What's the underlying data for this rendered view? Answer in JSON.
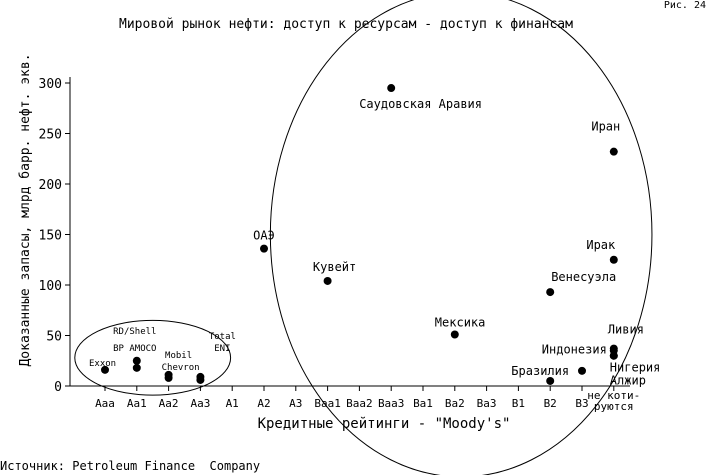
{
  "figure_label": "Рис. 24",
  "source": "Источник: Petroleum Finance  Company",
  "chart_data": {
    "type": "scatter",
    "title": "Мировой рынок нефти: доступ к ресурсам - доступ к финансам",
    "xlabel": "Кредитные рейтинги - \"Moody's\"",
    "ylabel": "Доказанные запасы, млрд барр. нефт. экв.",
    "categories": [
      "Aaa",
      "Aa1",
      "Aa2",
      "Aa3",
      "A1",
      "A2",
      "A3",
      "Baa1",
      "Baa2",
      "Baa3",
      "Ba1",
      "Ba2",
      "Ba3",
      "B1",
      "B2",
      "B3",
      "не коти-\nруются"
    ],
    "ylim": [
      0,
      300
    ],
    "yticks": [
      0,
      50,
      100,
      150,
      200,
      250,
      300
    ],
    "points": [
      {
        "label": "Exxon",
        "x": 0,
        "y": 16,
        "label_pos": "left"
      },
      {
        "label": "RD/Shell",
        "x": 1,
        "y": 25,
        "label_pos": "above2"
      },
      {
        "label": "BP AMOCO",
        "x": 1,
        "y": 18,
        "label_pos": "above1"
      },
      {
        "label": "Mobil",
        "x": 2,
        "y": 11,
        "label_pos": "above2"
      },
      {
        "label": "Chevron",
        "x": 2,
        "y": 8,
        "label_pos": "above1"
      },
      {
        "label": "Total",
        "x": 3,
        "y": 9,
        "label_pos": "right2"
      },
      {
        "label": "ENI",
        "x": 3,
        "y": 6,
        "label_pos": "right1"
      },
      {
        "label": "Саудовская Аравия",
        "x": 9,
        "y": 295,
        "label_pos": "below"
      },
      {
        "label": "Иран",
        "x": 16,
        "y": 232,
        "label_pos": "above"
      },
      {
        "label": "ОАЭ",
        "x": 5,
        "y": 136,
        "label_pos": "above"
      },
      {
        "label": "Ирак",
        "x": 16,
        "y": 125,
        "label_pos": "above"
      },
      {
        "label": "Кувейт",
        "x": 7,
        "y": 104,
        "label_pos": "above"
      },
      {
        "label": "Венесуэла",
        "x": 14,
        "y": 93,
        "label_pos": "above-right"
      },
      {
        "label": "Мексика",
        "x": 11,
        "y": 51,
        "label_pos": "above"
      },
      {
        "label": "Ливия",
        "x": 16,
        "y": 37,
        "label_pos": "above"
      },
      {
        "label": "Индонезия",
        "x": 16,
        "y": 35,
        "label_pos": "left"
      },
      {
        "label": "Нигерия",
        "x": 16,
        "y": 30,
        "label_pos": "below-right"
      },
      {
        "label": "Алжир",
        "x": 16,
        "y": 30,
        "label_pos": "below-right2"
      },
      {
        "label": "Бразилия",
        "x": 14,
        "y": 5,
        "label_pos": "above-left"
      },
      {
        "label": "",
        "x": 15,
        "y": 15,
        "label_pos": "none"
      }
    ],
    "groups": [
      {
        "name": "companies",
        "x_center": 1.5,
        "y_center": 28,
        "x_radius": 2.45,
        "y_radius": 37
      },
      {
        "name": "countries",
        "x_center": 11.2,
        "y_center": 150,
        "x_radius": 6.0,
        "y_radius": 240
      }
    ],
    "grid": false,
    "legend": "none"
  }
}
